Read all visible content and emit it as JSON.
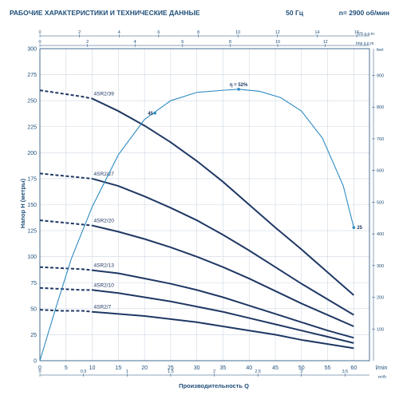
{
  "header": {
    "title": "РАБОЧИЕ ХАРАКТЕРИСТИКИ И ТЕХНИЧЕСКИЕ ДАННЫЕ",
    "frequency": "50 Гц",
    "speed": "n= 2900 об/мин"
  },
  "chart_data": {
    "type": "line",
    "xlabel": "Производительность Q",
    "ylabel": "Напор H (метры)",
    "x_unit": "l/min",
    "xlim": [
      0,
      63
    ],
    "ylim": [
      0,
      300
    ],
    "x_ticks": [
      0,
      5,
      10,
      15,
      20,
      25,
      30,
      35,
      40,
      45,
      50,
      55,
      60
    ],
    "y_ticks": [
      0,
      25,
      50,
      75,
      100,
      125,
      150,
      175,
      200,
      225,
      250,
      275,
      300
    ],
    "grid": true,
    "secondary_axes": {
      "us_gpm": {
        "unit": "US g.p.m.",
        "ticks": [
          "0",
          "2",
          "4",
          "6",
          "8",
          "10",
          "12",
          "14",
          "16"
        ]
      },
      "imp_gpm": {
        "unit": "Imp g.p.m.",
        "ticks": [
          "0",
          "2",
          "4",
          "6",
          "8",
          "10",
          "12",
          "14"
        ]
      },
      "feet": {
        "unit": "feet",
        "ticks": [
          "100",
          "200",
          "300",
          "400",
          "500",
          "600",
          "700",
          "800",
          "900"
        ]
      },
      "m3h": {
        "unit": "m³/h",
        "ticks": [
          "0",
          "0.5",
          "1",
          "1.5",
          "2",
          "2.5",
          "3",
          "3.5"
        ]
      }
    },
    "series": [
      {
        "name": "4SR2/39",
        "dashed": {
          "x": [
            0,
            4,
            8,
            10
          ],
          "y": [
            260,
            257,
            254,
            252
          ]
        },
        "solid": {
          "x": [
            10,
            15,
            20,
            25,
            30,
            35,
            40,
            45,
            50,
            55,
            60
          ],
          "y": [
            252,
            240,
            226,
            210,
            192,
            172,
            150,
            128,
            107,
            85,
            63
          ]
        }
      },
      {
        "name": "4SR2/27",
        "dashed": {
          "x": [
            0,
            4,
            8,
            10
          ],
          "y": [
            180,
            178,
            176,
            175
          ]
        },
        "solid": {
          "x": [
            10,
            15,
            20,
            25,
            30,
            35,
            40,
            45,
            50,
            55,
            60
          ],
          "y": [
            175,
            168,
            158,
            147,
            135,
            121,
            106,
            90,
            74,
            59,
            44
          ]
        }
      },
      {
        "name": "4SR2/20",
        "dashed": {
          "x": [
            0,
            4,
            8,
            10
          ],
          "y": [
            135,
            133,
            131,
            130
          ]
        },
        "solid": {
          "x": [
            10,
            15,
            20,
            25,
            30,
            35,
            40,
            45,
            50,
            55,
            60
          ],
          "y": [
            130,
            124,
            117,
            109,
            100,
            90,
            79,
            67,
            55,
            44,
            33
          ]
        }
      },
      {
        "name": "4SR2/13",
        "dashed": {
          "x": [
            0,
            4,
            8,
            10
          ],
          "y": [
            90,
            89,
            88,
            87
          ]
        },
        "solid": {
          "x": [
            10,
            15,
            20,
            25,
            30,
            35,
            40,
            45,
            50,
            55,
            60
          ],
          "y": [
            87,
            84,
            79,
            74,
            68,
            61,
            53,
            45,
            37,
            29,
            22
          ]
        }
      },
      {
        "name": "4SR2/10",
        "dashed": {
          "x": [
            0,
            4,
            8,
            10
          ],
          "y": [
            70,
            69,
            68,
            68
          ]
        },
        "solid": {
          "x": [
            10,
            15,
            20,
            25,
            30,
            35,
            40,
            45,
            50,
            55,
            60
          ],
          "y": [
            68,
            65,
            61,
            57,
            52,
            47,
            41,
            35,
            29,
            23,
            17
          ]
        }
      },
      {
        "name": "4SR2/7",
        "dashed": {
          "x": [
            0,
            4,
            8,
            10
          ],
          "y": [
            49,
            48,
            48,
            47
          ]
        },
        "solid": {
          "x": [
            10,
            15,
            20,
            25,
            30,
            35,
            40,
            45,
            50,
            55,
            60
          ],
          "y": [
            47,
            45,
            43,
            40,
            37,
            33,
            29,
            25,
            20,
            16,
            12
          ]
        }
      }
    ],
    "efficiency": {
      "label": "η = 52%",
      "x": [
        0,
        3,
        6,
        10,
        15,
        20,
        25,
        30,
        35,
        38,
        42,
        46,
        50,
        54,
        58,
        60
      ],
      "y": [
        0,
        50,
        98,
        148,
        198,
        232,
        250,
        258,
        260,
        261,
        259,
        253,
        240,
        214,
        168,
        128
      ],
      "markers": [
        {
          "x": 22,
          "y": 238,
          "label": "45"
        },
        {
          "x": 38,
          "y": 261,
          "label": ""
        },
        {
          "x": 60,
          "y": 128,
          "label": "25"
        }
      ]
    }
  }
}
